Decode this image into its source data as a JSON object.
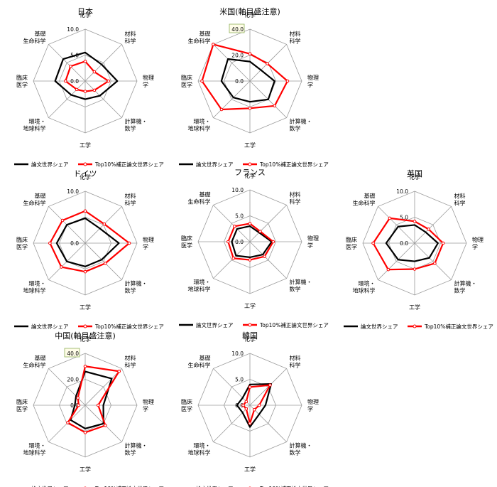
{
  "chart_data": [
    {
      "type": "radar",
      "title": "日本",
      "axes": [
        "化学",
        "材料\n科学",
        "物理\n学",
        "計算機・\n数学",
        "工学",
        "環境・\n地球科学",
        "臨床\n医学",
        "基礎\n生命科学"
      ],
      "range": [
        0,
        10
      ],
      "ticks": [
        "0.0",
        "5.0",
        "10.0"
      ],
      "scale_note": "",
      "series": [
        {
          "name": "論文世界シェア",
          "color": "#000000",
          "values": [
            5.5,
            4.5,
            6.2,
            4.0,
            3.5,
            3.8,
            5.8,
            6.0
          ]
        },
        {
          "name": "Top10%補正論文世界シェア",
          "color": "#ff0000",
          "values": [
            3.8,
            2.5,
            4.5,
            2.5,
            2.0,
            2.3,
            3.8,
            4.0
          ]
        }
      ]
    },
    {
      "type": "radar",
      "title": "米国(軸目盛注意)",
      "axes": [
        "化学",
        "材料\n科学",
        "物理\n学",
        "計算機・\n数学",
        "工学",
        "環境・\n地球科学",
        "臨床\n医学",
        "基礎\n生命科学"
      ],
      "range": [
        0,
        40
      ],
      "ticks": [
        "0.0",
        "20.0",
        "40.0"
      ],
      "scale_note": "40.0",
      "series": [
        {
          "name": "論文世界シェア",
          "color": "#000000",
          "values": [
            15,
            12,
            19,
            20,
            16,
            18,
            22,
            24
          ]
        },
        {
          "name": "Top10%補正論文世界シェア",
          "color": "#ff0000",
          "values": [
            21,
            19,
            29,
            27,
            21,
            31,
            37,
            40
          ]
        }
      ]
    },
    {
      "type": "radar",
      "title": "ドイツ",
      "axes": [
        "化学",
        "材料\n科学",
        "物理\n学",
        "計算機・\n数学",
        "工学",
        "環境・\n地球科学",
        "臨床\n医学",
        "基礎\n生命科学"
      ],
      "range": [
        0,
        10
      ],
      "ticks": [
        "0.0",
        "10.0"
      ],
      "scale_note": "",
      "series": [
        {
          "name": "論文世界シェア",
          "color": "#000000",
          "values": [
            4.8,
            4.0,
            6.5,
            4.5,
            4.5,
            5.0,
            5.5,
            5.0
          ]
        },
        {
          "name": "Top10%補正論文世界シェア",
          "color": "#ff0000",
          "values": [
            6.2,
            5.2,
            8.5,
            5.5,
            5.5,
            6.5,
            6.8,
            6.2
          ]
        }
      ]
    },
    {
      "type": "radar",
      "title": "フランス",
      "axes": [
        "化学",
        "材料\n科学",
        "物理\n学",
        "計算機・\n数学",
        "工学",
        "環境・\n地球科学",
        "臨床\n医学",
        "基礎\n生命科学"
      ],
      "range": [
        0,
        10
      ],
      "ticks": [
        "0.0",
        "5.0",
        "10.0"
      ],
      "scale_note": "",
      "series": [
        {
          "name": "論文世界シェア",
          "color": "#000000",
          "values": [
            3.0,
            2.5,
            4.2,
            3.5,
            3.0,
            3.8,
            3.5,
            3.5
          ]
        },
        {
          "name": "Top10%補正論文世界シェア",
          "color": "#ff0000",
          "values": [
            3.5,
            2.8,
            4.5,
            4.0,
            3.5,
            4.5,
            4.2,
            4.2
          ]
        }
      ]
    },
    {
      "type": "radar",
      "title": "英国",
      "axes": [
        "化学",
        "材料\n科学",
        "物理\n学",
        "計算機・\n数学",
        "工学",
        "環境・\n地球科学",
        "臨床\n医学",
        "基礎\n生命科学"
      ],
      "range": [
        0,
        10
      ],
      "ticks": [
        "0.0",
        "5.0",
        "10.0"
      ],
      "scale_note": "",
      "series": [
        {
          "name": "論文世界シェア",
          "color": "#000000",
          "values": [
            3.5,
            3.0,
            4.5,
            4.0,
            3.5,
            4.5,
            5.5,
            4.5
          ]
        },
        {
          "name": "Top10%補正論文世界シェア",
          "color": "#ff0000",
          "values": [
            4.2,
            3.8,
            5.5,
            5.5,
            5.0,
            7.2,
            8.0,
            6.8
          ]
        }
      ]
    },
    {
      "type": "radar",
      "title": "中国(軸目盛注意)",
      "axes": [
        "化学",
        "材料\n科学",
        "物理\n学",
        "計算機・\n数学",
        "工学",
        "環境・\n地球科学",
        "臨床\n医学",
        "基礎\n生命科学"
      ],
      "range": [
        0,
        40
      ],
      "ticks": [
        "0.0",
        "20.0",
        "40.0"
      ],
      "scale_note": "40.0",
      "series": [
        {
          "name": "論文世界シェア",
          "color": "#000000",
          "values": [
            26,
            29,
            14,
            20,
            18,
            16,
            8,
            10
          ]
        },
        {
          "name": "Top10%補正論文世界シェア",
          "color": "#ff0000",
          "values": [
            30,
            37,
            10,
            22,
            21,
            19,
            5,
            8
          ]
        }
      ]
    },
    {
      "type": "radar",
      "title": "韓国",
      "axes": [
        "化学",
        "材料\n科学",
        "物理\n学",
        "計算機・\n数学",
        "工学",
        "環境・\n地球科学",
        "臨床\n医学",
        "基礎\n生命科学"
      ],
      "range": [
        0,
        10
      ],
      "ticks": [
        "0.0",
        "5.0",
        "10.0"
      ],
      "scale_note": "",
      "series": [
        {
          "name": "論文世界シェア",
          "color": "#000000",
          "values": [
            4.0,
            5.8,
            3.0,
            2.5,
            4.2,
            2.0,
            2.5,
            2.0
          ]
        },
        {
          "name": "Top10%補正論文世界シェア",
          "color": "#ff0000",
          "values": [
            3.5,
            5.5,
            1.8,
            1.2,
            3.5,
            1.0,
            1.3,
            1.0
          ]
        }
      ]
    }
  ]
}
